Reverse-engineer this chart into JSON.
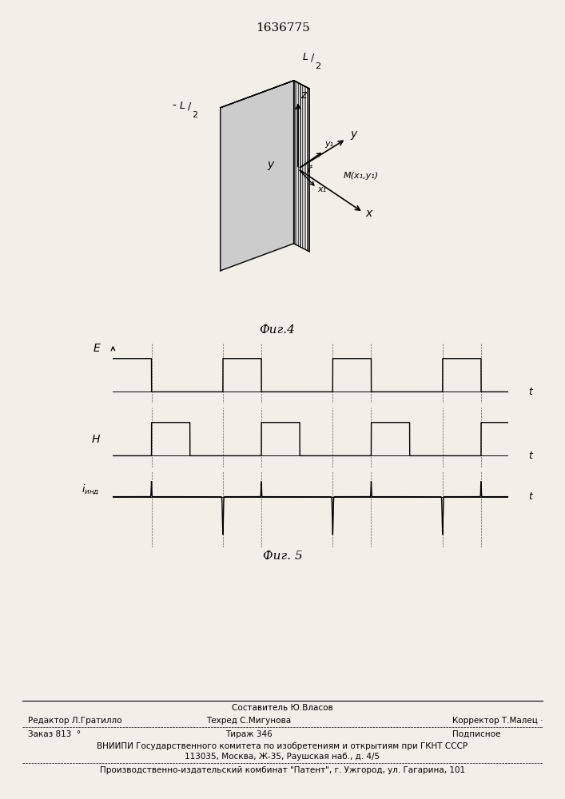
{
  "title_number": "1636775",
  "fig4_label": "Фиг.4",
  "fig5_label": "Фиг. 5",
  "background_color": "#f2efe9",
  "line_color": "#000000",
  "E_label": "E",
  "H_label": "H",
  "i_ind_label": "iинд",
  "t_label": "t",
  "footer_line1_center": "Составитель Ю.Власов",
  "footer_line2_left": "Редактор Л.Гратилло",
  "footer_line2_center": "Техред С.Мигунова",
  "footer_line2_right": "Корректор Т.Малец ·",
  "footer_line3_left": "Заказ 813  °",
  "footer_line3_center": "Тираж 346",
  "footer_line3_right": "Подписное",
  "footer_line4": "ВНИИПИ Государственного комитета по изобретениям и открытиям при ГКНТ СССР",
  "footer_line5": "113035, Москва, Ж-35, Раушская наб., д. 4/5",
  "footer_line6": "Производственно-издательский комбинат \"Патент\", г. Ужгород, ул. Гагарина, 101"
}
